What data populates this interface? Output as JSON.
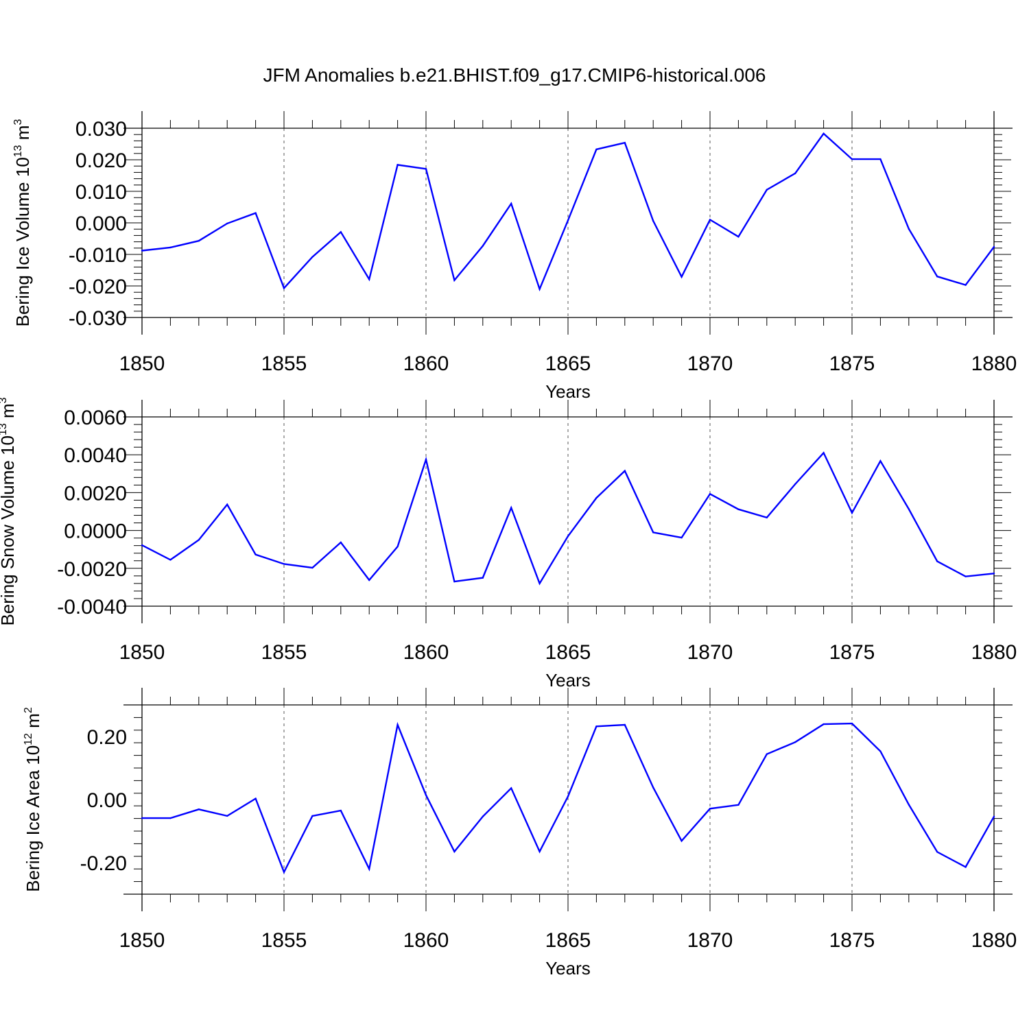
{
  "title": "JFM Anomalies b.e21.BHIST.f09_g17.CMIP6-historical.006",
  "colors": {
    "line": "#0000ff",
    "axis": "#000000",
    "grid": "#555555"
  },
  "chart_data": [
    {
      "type": "line",
      "title": "",
      "xlabel": "Years",
      "ylabel": {
        "main": "Bering Ice Volume 10",
        "exp": "13",
        "unit": " m",
        "unit_exp": "3"
      },
      "xlim": [
        1850,
        1880
      ],
      "ylim": [
        -0.03,
        0.03
      ],
      "x_ticks": [
        "1850",
        "1855",
        "1860",
        "1865",
        "1870",
        "1875",
        "1880"
      ],
      "y_ticks": [
        "0.030",
        "0.020",
        "0.010",
        "0.000",
        "-0.010",
        "-0.020",
        "-0.030"
      ],
      "y_tick_values": [
        0.03,
        0.02,
        0.01,
        0.0,
        -0.01,
        -0.02,
        -0.03
      ],
      "grid": "vertical dashed at major ticks",
      "series": [
        {
          "name": "Bering Ice Volume",
          "x": [
            1850,
            1851,
            1852,
            1853,
            1854,
            1855,
            1856,
            1857,
            1858,
            1859,
            1860,
            1861,
            1862,
            1863,
            1864,
            1865,
            1866,
            1867,
            1868,
            1869,
            1870,
            1871,
            1872,
            1873,
            1874,
            1875,
            1876,
            1877,
            1878,
            1879,
            1880
          ],
          "values": [
            -0.0088,
            -0.0078,
            -0.0057,
            -0.0002,
            0.0031,
            -0.0207,
            -0.0108,
            -0.0029,
            -0.0179,
            0.0184,
            0.0171,
            -0.0182,
            -0.0073,
            0.0061,
            -0.021,
            0.0008,
            0.0233,
            0.0254,
            0.0006,
            -0.0171,
            0.001,
            -0.0044,
            0.0105,
            0.0157,
            0.0283,
            0.0202,
            0.0202,
            -0.0019,
            -0.017,
            -0.0197,
            -0.0076
          ]
        }
      ]
    },
    {
      "type": "line",
      "title": "",
      "xlabel": "Years",
      "ylabel": {
        "main": "Bering Snow Volume 10",
        "exp": "13",
        "unit": " m",
        "unit_exp": "3"
      },
      "xlim": [
        1850,
        1880
      ],
      "ylim": [
        -0.004,
        0.006
      ],
      "x_ticks": [
        "1850",
        "1855",
        "1860",
        "1865",
        "1870",
        "1875",
        "1880"
      ],
      "y_ticks": [
        "0.0060",
        "0.0040",
        "0.0020",
        "0.0000",
        "-0.0020",
        "-0.0040"
      ],
      "y_tick_values": [
        0.006,
        0.004,
        0.002,
        0.0,
        -0.002,
        -0.004
      ],
      "grid": "vertical dashed at major ticks",
      "series": [
        {
          "name": "Bering Snow Volume",
          "x": [
            1850,
            1851,
            1852,
            1853,
            1854,
            1855,
            1856,
            1857,
            1858,
            1859,
            1860,
            1861,
            1862,
            1863,
            1864,
            1865,
            1866,
            1867,
            1868,
            1869,
            1870,
            1871,
            1872,
            1873,
            1874,
            1875,
            1876,
            1877,
            1878,
            1879,
            1880
          ],
          "values": [
            -0.00078,
            -0.00155,
            -0.0005,
            0.00137,
            -0.00127,
            -0.00177,
            -0.00197,
            -0.00063,
            -0.00262,
            -0.00085,
            0.00375,
            -0.0027,
            -0.0025,
            0.0012,
            -0.0028,
            -0.0003,
            0.00172,
            0.00315,
            -0.0001,
            -0.00038,
            0.00193,
            0.00112,
            0.00068,
            0.00245,
            0.0041,
            0.00093,
            0.00367,
            0.00113,
            -0.00163,
            -0.00243,
            -0.00227
          ]
        }
      ]
    },
    {
      "type": "line",
      "title": "",
      "xlabel": "Years",
      "ylabel": {
        "main": "Bering Ice Area 10",
        "exp": "12",
        "unit": " m",
        "unit_exp": "2"
      },
      "xlim": [
        1850,
        1880
      ],
      "ylim": [
        -0.3,
        0.3
      ],
      "x_ticks": [
        "1850",
        "1855",
        "1860",
        "1865",
        "1870",
        "1875",
        "1880"
      ],
      "y_ticks": [
        "0.20",
        "0.00",
        "-0.20"
      ],
      "y_tick_values": [
        0.2,
        0.0,
        -0.2
      ],
      "grid": "vertical dashed at major ticks",
      "series": [
        {
          "name": "Bering Ice Area",
          "x": [
            1850,
            1851,
            1852,
            1853,
            1854,
            1855,
            1856,
            1857,
            1858,
            1859,
            1860,
            1861,
            1862,
            1863,
            1864,
            1865,
            1866,
            1867,
            1868,
            1869,
            1870,
            1871,
            1872,
            1873,
            1874,
            1875,
            1876,
            1877,
            1878,
            1879,
            1880
          ],
          "values": [
            -0.059,
            -0.059,
            -0.031,
            -0.052,
            0.003,
            -0.23,
            -0.052,
            -0.035,
            -0.22,
            0.237,
            0.014,
            -0.165,
            -0.054,
            0.036,
            -0.165,
            0.01,
            0.232,
            0.237,
            0.038,
            -0.131,
            -0.029,
            -0.017,
            0.144,
            0.182,
            0.239,
            0.241,
            0.153,
            -0.016,
            -0.166,
            -0.214,
            -0.054
          ]
        }
      ]
    }
  ]
}
